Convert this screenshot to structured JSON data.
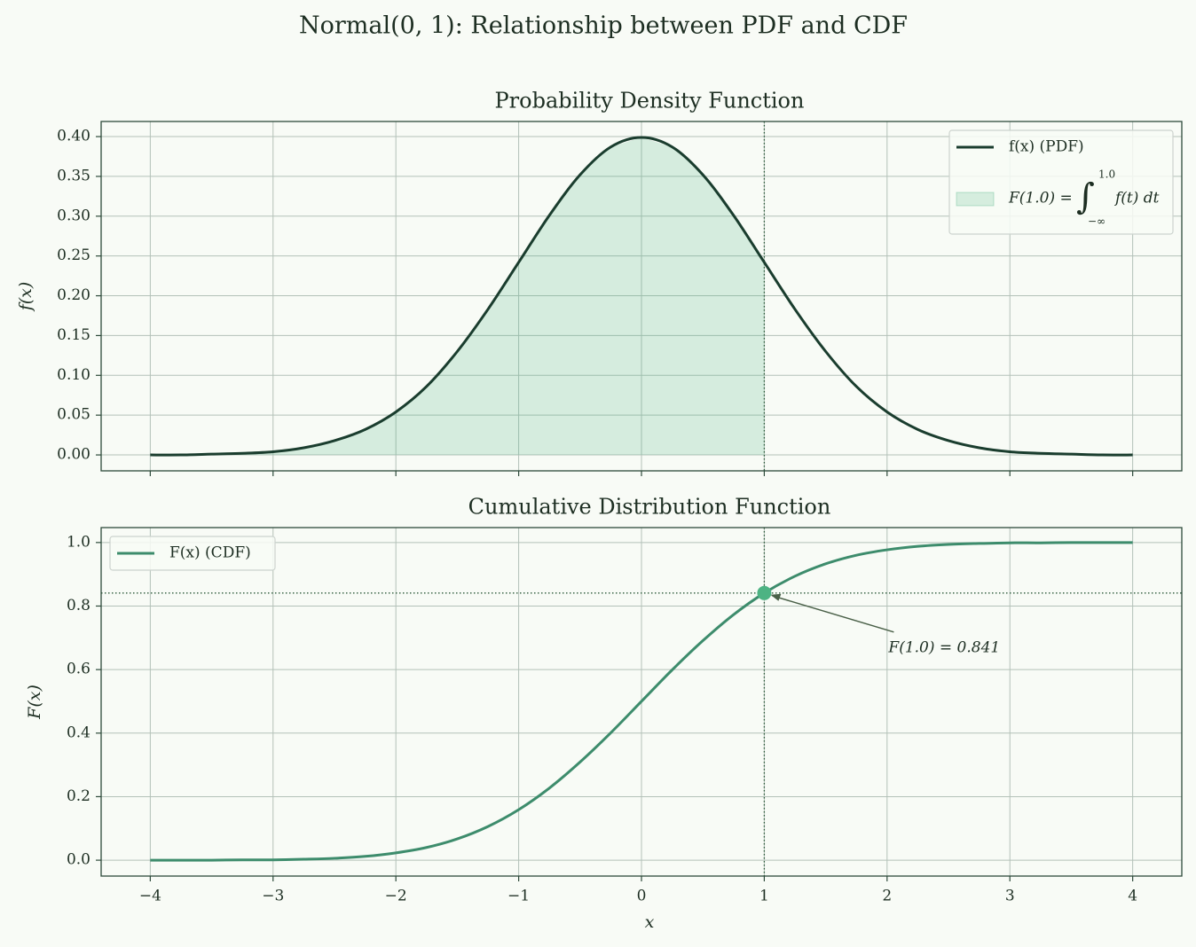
{
  "title": "Normal(0, 1): Relationship between PDF and CDF",
  "chart_data": [
    {
      "type": "line",
      "title": "Probability Density Function",
      "ylabel": "f(x)",
      "x": [
        -4,
        -3.75,
        -3.5,
        -3.25,
        -3,
        -2.75,
        -2.5,
        -2.25,
        -2,
        -1.75,
        -1.5,
        -1.25,
        -1,
        -0.75,
        -0.5,
        -0.25,
        0,
        0.25,
        0.5,
        0.75,
        1,
        1.25,
        1.5,
        1.75,
        2,
        2.25,
        2.5,
        2.75,
        3,
        3.25,
        3.5,
        3.75,
        4
      ],
      "xlim": [
        -4.4,
        4.4
      ],
      "xticks": [
        -4,
        -3,
        -2,
        -1,
        0,
        1,
        2,
        3,
        4
      ],
      "xtick_labels": false,
      "ylim": [
        -0.02,
        0.419
      ],
      "yticks": [
        {
          "value": 0,
          "label": "0.00"
        },
        {
          "value": 0.05,
          "label": "0.05"
        },
        {
          "value": 0.1,
          "label": "0.10"
        },
        {
          "value": 0.15,
          "label": "0.15"
        },
        {
          "value": 0.2,
          "label": "0.20"
        },
        {
          "value": 0.25,
          "label": "0.25"
        },
        {
          "value": 0.3,
          "label": "0.30"
        },
        {
          "value": 0.35,
          "label": "0.35"
        },
        {
          "value": 0.4,
          "label": "0.40"
        }
      ],
      "grid": true,
      "legend": "upper right",
      "series": [
        {
          "name": "f(x) (PDF)",
          "color": "#1a3d2e",
          "values": [
            0,
            0,
            0.001,
            0.002,
            0.004,
            0.009,
            0.018,
            0.032,
            0.054,
            0.086,
            0.13,
            0.183,
            0.242,
            0.301,
            0.352,
            0.387,
            0.399,
            0.387,
            0.352,
            0.301,
            0.242,
            0.183,
            0.13,
            0.086,
            0.054,
            0.032,
            0.018,
            0.009,
            0.004,
            0.002,
            0.001,
            0,
            0
          ]
        }
      ],
      "shade": {
        "label": "F(1.0) =",
        "sign": "∫",
        "lower": "−∞",
        "upper": "1.0",
        "integrand": "f(t) dt",
        "color": "#4db383",
        "opacity": 0.2,
        "x_max": 1
      },
      "vline": 1
    },
    {
      "type": "line",
      "title": "Cumulative Distribution Function",
      "xlabel": "x",
      "ylabel": "F(x)",
      "x": [
        -4,
        -3.75,
        -3.5,
        -3.25,
        -3,
        -2.75,
        -2.5,
        -2.25,
        -2,
        -1.75,
        -1.5,
        -1.25,
        -1,
        -0.75,
        -0.5,
        -0.25,
        0,
        0.25,
        0.5,
        0.75,
        1,
        1.25,
        1.5,
        1.75,
        2,
        2.25,
        2.5,
        2.75,
        3,
        3.25,
        3.5,
        3.75,
        4
      ],
      "xlim": [
        -4.4,
        4.4
      ],
      "xticks": [
        {
          "value": -4,
          "label": "−4"
        },
        {
          "value": -3,
          "label": "−3"
        },
        {
          "value": -2,
          "label": "−2"
        },
        {
          "value": -1,
          "label": "−1"
        },
        0,
        1,
        2,
        3,
        4
      ],
      "ylim": [
        -0.05,
        1.047
      ],
      "yticks": [
        {
          "value": 0,
          "label": "0.0"
        },
        {
          "value": 0.2,
          "label": "0.2"
        },
        {
          "value": 0.4,
          "label": "0.4"
        },
        {
          "value": 0.6,
          "label": "0.6"
        },
        {
          "value": 0.8,
          "label": "0.8"
        },
        {
          "value": 1,
          "label": "1.0"
        }
      ],
      "grid": true,
      "legend": "upper left",
      "series": [
        {
          "name": "F(x) (CDF)",
          "color": "#3d8c6c",
          "values": [
            0,
            0,
            0,
            0.001,
            0.001,
            0.003,
            0.006,
            0.012,
            0.023,
            0.04,
            0.067,
            0.106,
            0.159,
            0.227,
            0.309,
            0.401,
            0.5,
            0.599,
            0.691,
            0.773,
            0.841,
            0.894,
            0.933,
            0.96,
            0.977,
            0.988,
            0.994,
            0.997,
            0.999,
            0.999,
            1,
            1,
            1
          ]
        }
      ],
      "vline": 1,
      "hline": 0.841,
      "annotation": {
        "text": "F(1.0) = 0.841",
        "x": 1,
        "y": 0.841,
        "color": "#4db383"
      }
    }
  ]
}
